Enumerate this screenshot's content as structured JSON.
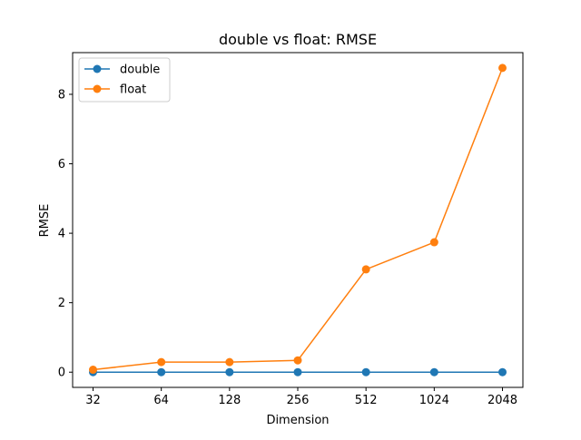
{
  "chart_data": {
    "type": "line",
    "title": "double vs float: RMSE",
    "xlabel": "Dimension",
    "ylabel": "RMSE",
    "categories": [
      "32",
      "64",
      "128",
      "256",
      "512",
      "1024",
      "2048"
    ],
    "ylim": [
      -0.4381,
      9.2008
    ],
    "yticks": [
      "0",
      "2",
      "4",
      "6",
      "8"
    ],
    "grid": false,
    "legend_position": "upper left",
    "series": [
      {
        "name": "double",
        "color": "#1f77b4",
        "marker": "circle",
        "values": [
          0.0,
          0.0,
          0.0,
          0.0,
          0.0,
          0.0,
          0.0
        ]
      },
      {
        "name": "float",
        "color": "#ff7f0e",
        "marker": "circle",
        "values": [
          0.07,
          0.29,
          0.29,
          0.34,
          2.96,
          3.74,
          8.76
        ]
      }
    ]
  }
}
